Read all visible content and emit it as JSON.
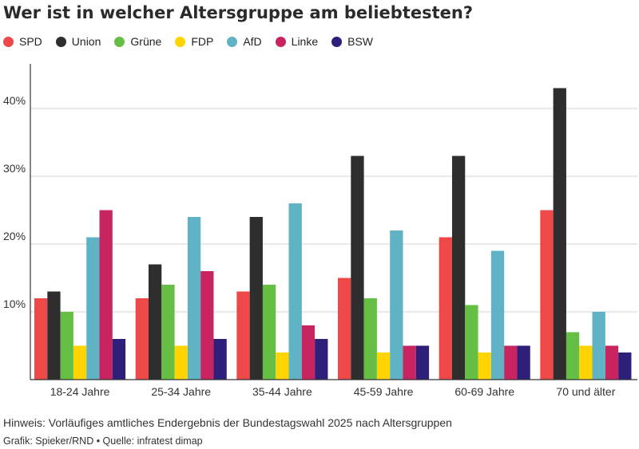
{
  "chart_data": {
    "type": "bar",
    "title": "Wer ist in welcher Altersgruppe am beliebtesten?",
    "categories": [
      "18-24 Jahre",
      "25-34 Jahre",
      "35-44 Jahre",
      "45-59 Jahre",
      "60-69 Jahre",
      "70 und älter"
    ],
    "series": [
      {
        "name": "SPD",
        "color": "#ef4848",
        "values": [
          12,
          12,
          13,
          15,
          21,
          25
        ]
      },
      {
        "name": "Union",
        "color": "#2e2e2e",
        "values": [
          13,
          17,
          24,
          33,
          33,
          43
        ]
      },
      {
        "name": "Grüne",
        "color": "#66bf45",
        "values": [
          10,
          14,
          14,
          12,
          11,
          7
        ]
      },
      {
        "name": "FDP",
        "color": "#ffd400",
        "values": [
          5,
          5,
          4,
          4,
          4,
          5
        ]
      },
      {
        "name": "AfD",
        "color": "#5fb3c4",
        "values": [
          21,
          24,
          26,
          22,
          19,
          10
        ]
      },
      {
        "name": "Linke",
        "color": "#c8245f",
        "values": [
          25,
          16,
          8,
          5,
          5,
          5
        ]
      },
      {
        "name": "BSW",
        "color": "#2d1f7a",
        "values": [
          6,
          6,
          6,
          5,
          5,
          4
        ]
      }
    ],
    "y_ticks": [
      "10%",
      "20%",
      "30%",
      "40%"
    ],
    "y_tick_values": [
      10,
      20,
      30,
      40
    ],
    "ylim": [
      0,
      50
    ],
    "grid": true,
    "legend_position": "top-left",
    "xlabel": "",
    "ylabel": ""
  },
  "note": "Hinweis: Vorläufiges amtliches Endergebnis der Bundestagswahl 2025 nach Altersgruppen",
  "credits": "Grafik: Spieker/RND • Quelle: infratest dimap"
}
